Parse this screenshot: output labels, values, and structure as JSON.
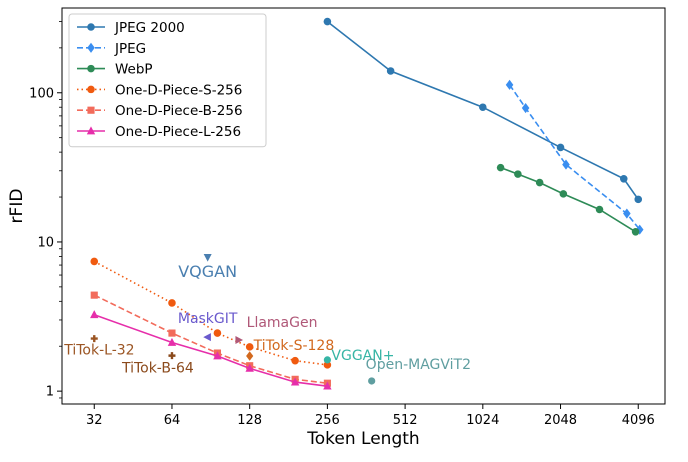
{
  "chart_data": {
    "type": "line",
    "xlabel": "Token Length",
    "ylabel": "rFID",
    "x_scale": "log2",
    "y_scale": "log10",
    "xlim": [
      24,
      5200
    ],
    "ylim": [
      0.82,
      370
    ],
    "x_ticks": [
      32,
      64,
      128,
      256,
      512,
      1024,
      2048,
      4096
    ],
    "x_tick_labels": [
      "32",
      "64",
      "128",
      "256",
      "512",
      "1024",
      "2048",
      "4096"
    ],
    "y_ticks": [
      1,
      10,
      100
    ],
    "y_tick_labels": [
      "1",
      "10",
      "100"
    ],
    "grid": false,
    "legend_position": "top-left",
    "series": [
      {
        "name": "JPEG 2000",
        "color": "#2e78b0",
        "dash": "solid",
        "marker": "circle",
        "x": [
          256,
          450,
          1024,
          2048,
          3600,
          4096
        ],
        "y": [
          300,
          140,
          80,
          43,
          26.5,
          19.3
        ]
      },
      {
        "name": "JPEG",
        "color": "#3a8ef0",
        "dash": "dashed",
        "marker": "diamond",
        "x": [
          1300,
          1500,
          2150,
          3700,
          4150
        ],
        "y": [
          113,
          79,
          33,
          15.5,
          12.1
        ]
      },
      {
        "name": "WebP",
        "color": "#2e8b57",
        "dash": "solid",
        "marker": "circle",
        "x": [
          1200,
          1400,
          1700,
          2100,
          2900,
          4000
        ],
        "y": [
          31.5,
          28.5,
          25,
          21,
          16.5,
          11.7
        ]
      },
      {
        "name": "One-D-Piece-S-256",
        "color": "#f05a0f",
        "dash": "dotted",
        "marker": "circle",
        "x": [
          32,
          64,
          96,
          128,
          192,
          256
        ],
        "y": [
          7.4,
          3.9,
          2.45,
          1.98,
          1.6,
          1.5
        ]
      },
      {
        "name": "One-D-Piece-B-256",
        "color": "#f26b5b",
        "dash": "dashed",
        "marker": "square",
        "x": [
          32,
          64,
          96,
          128,
          192,
          256
        ],
        "y": [
          4.4,
          2.45,
          1.8,
          1.48,
          1.2,
          1.13
        ]
      },
      {
        "name": "One-D-Piece-L-256",
        "color": "#e62eaa",
        "dash": "solid",
        "marker": "triangle",
        "x": [
          32,
          64,
          96,
          128,
          192,
          256
        ],
        "y": [
          3.25,
          2.12,
          1.72,
          1.42,
          1.15,
          1.08
        ]
      }
    ],
    "annotations": [
      {
        "text": "VQGAN",
        "color": "#4a7fb0",
        "marker": "triangle-down",
        "x": 88,
        "y": 7.9
      },
      {
        "text": "MaskGIT",
        "color": "#6a5acd",
        "marker": "triangle-left",
        "x": 88,
        "y": 2.3
      },
      {
        "text": "LlamaGen",
        "color": "#b05878",
        "marker": "triangle-right",
        "x": 116,
        "y": 2.2
      },
      {
        "text": "TiTok-S-128",
        "color": "#d2691e",
        "marker": "diamond",
        "x": 128,
        "y": 1.72
      },
      {
        "text": "TiTok-L-32",
        "color": "#9b5523",
        "marker": "plus",
        "x": 32,
        "y": 2.25
      },
      {
        "text": "TiTok-B-64",
        "color": "#8b4a1c",
        "marker": "plus",
        "x": 64,
        "y": 1.73
      },
      {
        "text": "VGGAN+",
        "color": "#36b5a5",
        "marker": "circle",
        "x": 256,
        "y": 1.62
      },
      {
        "text": "Open-MAGViT2",
        "color": "#5f9ea0",
        "marker": "circle",
        "x": 380,
        "y": 1.17
      }
    ]
  }
}
